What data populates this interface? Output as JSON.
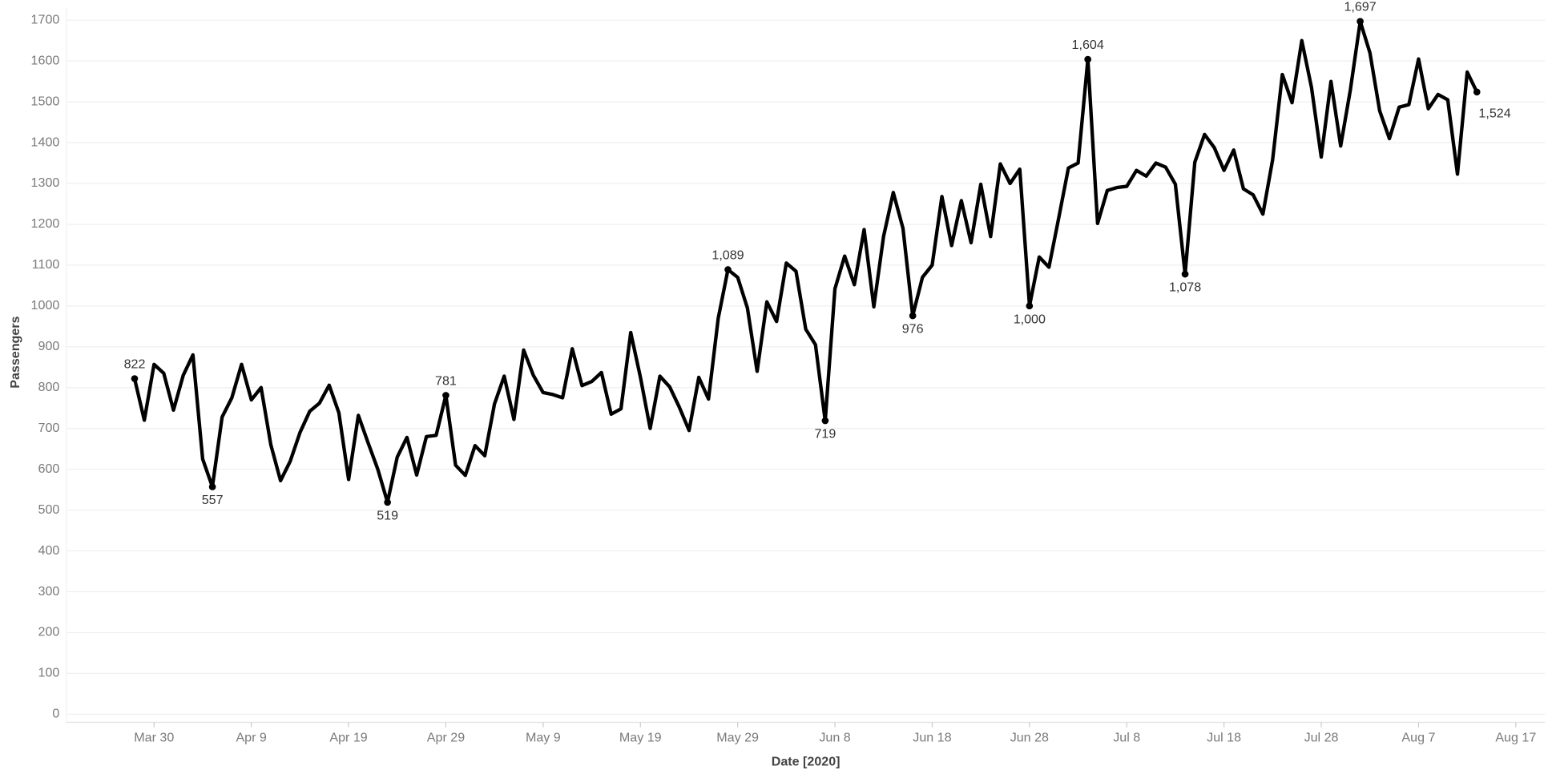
{
  "chart_data": {
    "type": "line",
    "x_label": "Date [2020]",
    "y_label": "Passengers",
    "x": [
      "2020-03-28",
      "2020-03-29",
      "2020-03-30",
      "2020-03-31",
      "2020-04-01",
      "2020-04-02",
      "2020-04-03",
      "2020-04-04",
      "2020-04-05",
      "2020-04-06",
      "2020-04-07",
      "2020-04-08",
      "2020-04-09",
      "2020-04-10",
      "2020-04-11",
      "2020-04-12",
      "2020-04-13",
      "2020-04-14",
      "2020-04-15",
      "2020-04-16",
      "2020-04-17",
      "2020-04-18",
      "2020-04-19",
      "2020-04-20",
      "2020-04-21",
      "2020-04-22",
      "2020-04-23",
      "2020-04-24",
      "2020-04-25",
      "2020-04-26",
      "2020-04-27",
      "2020-04-28",
      "2020-04-29",
      "2020-04-30",
      "2020-05-01",
      "2020-05-02",
      "2020-05-03",
      "2020-05-04",
      "2020-05-05",
      "2020-05-06",
      "2020-05-07",
      "2020-05-08",
      "2020-05-09",
      "2020-05-10",
      "2020-05-11",
      "2020-05-12",
      "2020-05-13",
      "2020-05-14",
      "2020-05-15",
      "2020-05-16",
      "2020-05-17",
      "2020-05-18",
      "2020-05-19",
      "2020-05-20",
      "2020-05-21",
      "2020-05-22",
      "2020-05-23",
      "2020-05-24",
      "2020-05-25",
      "2020-05-26",
      "2020-05-27",
      "2020-05-28",
      "2020-05-29",
      "2020-05-30",
      "2020-05-31",
      "2020-06-01",
      "2020-06-02",
      "2020-06-03",
      "2020-06-04",
      "2020-06-05",
      "2020-06-06",
      "2020-06-07",
      "2020-06-08",
      "2020-06-09",
      "2020-06-10",
      "2020-06-11",
      "2020-06-12",
      "2020-06-13",
      "2020-06-14",
      "2020-06-15",
      "2020-06-16",
      "2020-06-17",
      "2020-06-18",
      "2020-06-19",
      "2020-06-20",
      "2020-06-21",
      "2020-06-22",
      "2020-06-23",
      "2020-06-24",
      "2020-06-25",
      "2020-06-26",
      "2020-06-27",
      "2020-06-28",
      "2020-06-29",
      "2020-06-30",
      "2020-07-01",
      "2020-07-02",
      "2020-07-03",
      "2020-07-04",
      "2020-07-05",
      "2020-07-06",
      "2020-07-07",
      "2020-07-08",
      "2020-07-09",
      "2020-07-10",
      "2020-07-11",
      "2020-07-12",
      "2020-07-13",
      "2020-07-14",
      "2020-07-15",
      "2020-07-16",
      "2020-07-17",
      "2020-07-18",
      "2020-07-19",
      "2020-07-20",
      "2020-07-21",
      "2020-07-22",
      "2020-07-23",
      "2020-07-24",
      "2020-07-25",
      "2020-07-26",
      "2020-07-27",
      "2020-07-28",
      "2020-07-29",
      "2020-07-30",
      "2020-07-31",
      "2020-08-01",
      "2020-08-02",
      "2020-08-03",
      "2020-08-04",
      "2020-08-05",
      "2020-08-06",
      "2020-08-07",
      "2020-08-08",
      "2020-08-09",
      "2020-08-10",
      "2020-08-11",
      "2020-08-12",
      "2020-08-13"
    ],
    "series": [
      {
        "name": "Passengers",
        "color": "#000000",
        "values": [
          822,
          720,
          857,
          835,
          745,
          830,
          880,
          625,
          557,
          728,
          775,
          857,
          770,
          800,
          660,
          572,
          620,
          690,
          742,
          762,
          806,
          738,
          575,
          732,
          665,
          600,
          519,
          630,
          678,
          586,
          680,
          683,
          781,
          610,
          585,
          658,
          633,
          760,
          828,
          722,
          892,
          830,
          788,
          783,
          775,
          895,
          805,
          815,
          837,
          735,
          748,
          935,
          825,
          700,
          828,
          802,
          752,
          695,
          825,
          772,
          970,
          1089,
          1070,
          995,
          840,
          1010,
          962,
          1105,
          1085,
          943,
          905,
          719,
          1042,
          1122,
          1052,
          1187,
          998,
          1170,
          1278,
          1190,
          976,
          1070,
          1100,
          1268,
          1148,
          1258,
          1155,
          1298,
          1170,
          1348,
          1300,
          1335,
          1000,
          1120,
          1095,
          1215,
          1338,
          1350,
          1604,
          1202,
          1283,
          1290,
          1293,
          1332,
          1318,
          1350,
          1340,
          1298,
          1078,
          1352,
          1420,
          1388,
          1332,
          1382,
          1287,
          1272,
          1225,
          1358,
          1567,
          1498,
          1650,
          1535,
          1365,
          1550,
          1392,
          1530,
          1697,
          1620,
          1478,
          1410,
          1487,
          1493,
          1605,
          1483,
          1518,
          1505,
          1323,
          1573,
          1524
        ],
        "value_labels": [
          "822",
          null,
          null,
          null,
          null,
          null,
          null,
          null,
          "557",
          null,
          null,
          null,
          null,
          null,
          null,
          null,
          null,
          null,
          null,
          null,
          null,
          null,
          null,
          null,
          null,
          null,
          "519",
          null,
          null,
          null,
          null,
          null,
          "781",
          null,
          null,
          null,
          null,
          null,
          null,
          null,
          null,
          null,
          null,
          null,
          null,
          null,
          null,
          null,
          null,
          null,
          null,
          null,
          null,
          null,
          null,
          null,
          null,
          null,
          null,
          null,
          null,
          "1,089",
          null,
          null,
          null,
          null,
          null,
          null,
          null,
          null,
          null,
          "719",
          null,
          null,
          null,
          null,
          null,
          null,
          null,
          null,
          "976",
          null,
          null,
          null,
          null,
          null,
          null,
          null,
          null,
          null,
          null,
          null,
          "1,000",
          null,
          null,
          null,
          null,
          null,
          "1,604",
          null,
          null,
          null,
          null,
          null,
          null,
          null,
          null,
          null,
          "1,078",
          null,
          null,
          null,
          null,
          null,
          null,
          null,
          null,
          null,
          null,
          null,
          null,
          null,
          null,
          null,
          null,
          null,
          "1,697",
          null,
          null,
          null,
          null,
          null,
          null,
          null,
          null,
          null,
          null,
          null,
          "1,524"
        ]
      }
    ],
    "xlim": [
      "2020-03-21",
      "2020-08-20"
    ],
    "xticks": [
      {
        "value": "2020-03-30",
        "label": "Mar 30"
      },
      {
        "value": "2020-04-09",
        "label": "Apr 9"
      },
      {
        "value": "2020-04-19",
        "label": "Apr 19"
      },
      {
        "value": "2020-04-29",
        "label": "Apr 29"
      },
      {
        "value": "2020-05-09",
        "label": "May 9"
      },
      {
        "value": "2020-05-19",
        "label": "May 19"
      },
      {
        "value": "2020-05-29",
        "label": "May 29"
      },
      {
        "value": "2020-06-08",
        "label": "Jun 8"
      },
      {
        "value": "2020-06-18",
        "label": "Jun 18"
      },
      {
        "value": "2020-06-28",
        "label": "Jun 28"
      },
      {
        "value": "2020-07-08",
        "label": "Jul 8"
      },
      {
        "value": "2020-07-18",
        "label": "Jul 18"
      },
      {
        "value": "2020-07-28",
        "label": "Jul 28"
      },
      {
        "value": "2020-08-07",
        "label": "Aug 7"
      },
      {
        "value": "2020-08-17",
        "label": "Aug 17"
      }
    ],
    "ylim": [
      -20,
      1730
    ],
    "yticks": [
      0,
      100,
      200,
      300,
      400,
      500,
      600,
      700,
      800,
      900,
      1000,
      1100,
      1200,
      1300,
      1400,
      1500,
      1600,
      1700
    ],
    "grid": true
  }
}
